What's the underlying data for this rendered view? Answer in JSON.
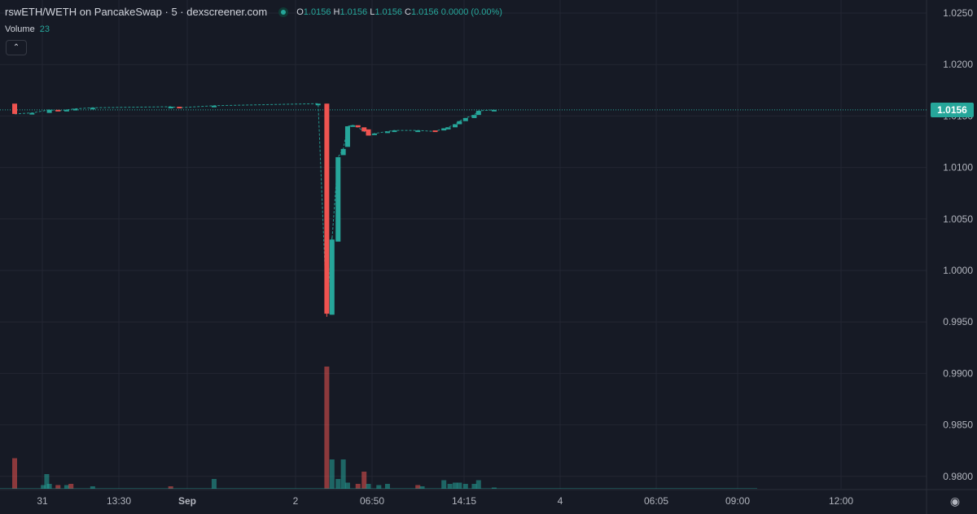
{
  "legend": {
    "title": "rswETH/WETH on PancakeSwap · 5 · dexscreener.com",
    "ohlc": [
      {
        "key": "O",
        "value": "1.0156"
      },
      {
        "key": "H",
        "value": "1.0156"
      },
      {
        "key": "L",
        "value": "1.0156"
      },
      {
        "key": "C",
        "value": "1.0156"
      }
    ],
    "change": "0.0000 (0.00%)"
  },
  "volume_legend": {
    "label": "Volume",
    "value": "23"
  },
  "last_price": "1.0156",
  "colors": {
    "up": "#26a69a",
    "down": "#ef5350",
    "background": "#161a25",
    "grid": "#232632",
    "text": "#b2b5be"
  },
  "chart_data": {
    "type": "candlestick",
    "y_ticks": [
      "1.0250",
      "1.0200",
      "1.0150",
      "1.0100",
      "1.0050",
      "1.0000",
      "0.9950",
      "0.9900",
      "0.9850",
      "0.9800"
    ],
    "ylim": [
      0.979,
      1.026
    ],
    "x_ticks": [
      "31",
      "13:30",
      "Sep",
      "2",
      "06:50",
      "14:15",
      "4",
      "06:05",
      "09:00",
      "12:00"
    ],
    "last_price": 1.0156,
    "candles": [
      {
        "t": 0.0,
        "o": 1.0162,
        "c": 1.0152
      },
      {
        "t": 2.0,
        "o": 1.0153,
        "c": 1.0153
      },
      {
        "t": 4.0,
        "o": 1.0153,
        "c": 1.0156
      },
      {
        "t": 5.0,
        "o": 1.0156,
        "c": 1.0155
      },
      {
        "t": 6.0,
        "o": 1.0155,
        "c": 1.0156
      },
      {
        "t": 7.0,
        "o": 1.0156,
        "c": 1.0157
      },
      {
        "t": 9.0,
        "o": 1.0157,
        "c": 1.0158
      },
      {
        "t": 18.0,
        "o": 1.0158,
        "c": 1.0159
      },
      {
        "t": 19.0,
        "o": 1.0159,
        "c": 1.0158
      },
      {
        "t": 23.0,
        "o": 1.0159,
        "c": 1.016
      },
      {
        "t": 35.0,
        "o": 1.0162,
        "c": 1.0162
      },
      {
        "t": 36.0,
        "o": 1.0162,
        "c": 0.9958,
        "l": 0.9955
      },
      {
        "t": 36.6,
        "o": 0.9957,
        "c": 1.003,
        "h": 1.0032
      },
      {
        "t": 37.3,
        "o": 1.0028,
        "c": 1.011
      },
      {
        "t": 37.9,
        "o": 1.0112,
        "c": 1.0118
      },
      {
        "t": 38.4,
        "o": 1.012,
        "c": 1.014
      },
      {
        "t": 39.0,
        "o": 1.014,
        "c": 1.0141
      },
      {
        "t": 39.6,
        "o": 1.0141,
        "c": 1.0139
      },
      {
        "t": 40.3,
        "o": 1.0139,
        "c": 1.0135
      },
      {
        "t": 40.8,
        "o": 1.0137,
        "c": 1.0131
      },
      {
        "t": 41.5,
        "o": 1.0132,
        "c": 1.0133
      },
      {
        "t": 43.0,
        "o": 1.0134,
        "c": 1.0135
      },
      {
        "t": 43.8,
        "o": 1.0135,
        "c": 1.0136
      },
      {
        "t": 46.5,
        "o": 1.0136,
        "c": 1.0136
      },
      {
        "t": 48.5,
        "o": 1.0136,
        "c": 1.0135
      },
      {
        "t": 49.5,
        "o": 1.0136,
        "c": 1.0138
      },
      {
        "t": 50.0,
        "o": 1.0137,
        "c": 1.0139
      },
      {
        "t": 50.8,
        "o": 1.0139,
        "c": 1.0142
      },
      {
        "t": 51.3,
        "o": 1.0142,
        "c": 1.0145
      },
      {
        "t": 52.0,
        "o": 1.0145,
        "c": 1.0148
      },
      {
        "t": 53.0,
        "o": 1.0148,
        "c": 1.0151
      },
      {
        "t": 53.5,
        "o": 1.0151,
        "c": 1.0155
      },
      {
        "t": 55.3,
        "o": 1.0156,
        "c": 1.0156
      }
    ],
    "volume": [
      {
        "t": 0.0,
        "v": 0.25,
        "dir": "down"
      },
      {
        "t": 3.3,
        "v": 0.03,
        "dir": "up"
      },
      {
        "t": 3.7,
        "v": 0.12,
        "dir": "up"
      },
      {
        "t": 4.0,
        "v": 0.04,
        "dir": "up"
      },
      {
        "t": 5.0,
        "v": 0.03,
        "dir": "down"
      },
      {
        "t": 6.0,
        "v": 0.03,
        "dir": "up"
      },
      {
        "t": 6.5,
        "v": 0.04,
        "dir": "down"
      },
      {
        "t": 9.0,
        "v": 0.02,
        "dir": "up"
      },
      {
        "t": 18.0,
        "v": 0.02,
        "dir": "down"
      },
      {
        "t": 23.0,
        "v": 0.08,
        "dir": "up"
      },
      {
        "t": 36.0,
        "v": 1.0,
        "dir": "down"
      },
      {
        "t": 36.6,
        "v": 0.24,
        "dir": "up"
      },
      {
        "t": 37.3,
        "v": 0.08,
        "dir": "up"
      },
      {
        "t": 37.9,
        "v": 0.24,
        "dir": "up"
      },
      {
        "t": 38.4,
        "v": 0.05,
        "dir": "up"
      },
      {
        "t": 39.6,
        "v": 0.04,
        "dir": "down"
      },
      {
        "t": 40.3,
        "v": 0.14,
        "dir": "down"
      },
      {
        "t": 40.8,
        "v": 0.04,
        "dir": "up"
      },
      {
        "t": 42.0,
        "v": 0.03,
        "dir": "up"
      },
      {
        "t": 43.0,
        "v": 0.04,
        "dir": "up"
      },
      {
        "t": 46.5,
        "v": 0.03,
        "dir": "down"
      },
      {
        "t": 47.0,
        "v": 0.02,
        "dir": "up"
      },
      {
        "t": 49.5,
        "v": 0.07,
        "dir": "up"
      },
      {
        "t": 50.2,
        "v": 0.04,
        "dir": "up"
      },
      {
        "t": 50.8,
        "v": 0.05,
        "dir": "up"
      },
      {
        "t": 51.3,
        "v": 0.05,
        "dir": "up"
      },
      {
        "t": 52.0,
        "v": 0.04,
        "dir": "up"
      },
      {
        "t": 53.0,
        "v": 0.04,
        "dir": "up"
      },
      {
        "t": 53.5,
        "v": 0.07,
        "dir": "up"
      },
      {
        "t": 55.3,
        "v": 0.01,
        "dir": "up"
      }
    ]
  }
}
